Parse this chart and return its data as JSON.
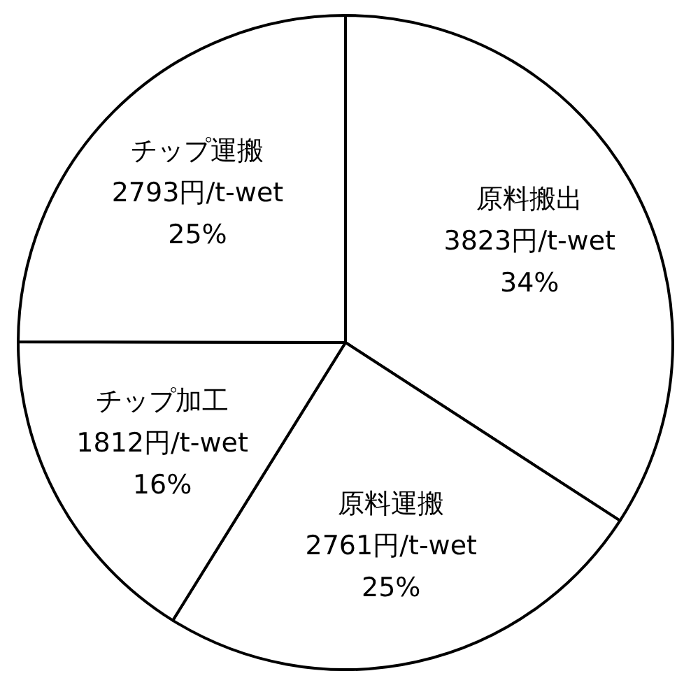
{
  "chart_data": {
    "type": "pie",
    "categories": [
      "原料搬出",
      "原料運搬",
      "チップ加工",
      "チップ運搬"
    ],
    "values": [
      3823,
      2761,
      1812,
      2793
    ],
    "colors": [
      "#ffffff",
      "#ffffff",
      "#ffffff",
      "#ffffff"
    ],
    "value_labels": [
      "3823円/t-wet",
      "2761円/t-wet",
      "1812円/t-wet",
      "2793円/t-wet"
    ],
    "annotations": [
      "34%",
      "25%",
      "16%",
      "25%"
    ],
    "legend": false
  }
}
